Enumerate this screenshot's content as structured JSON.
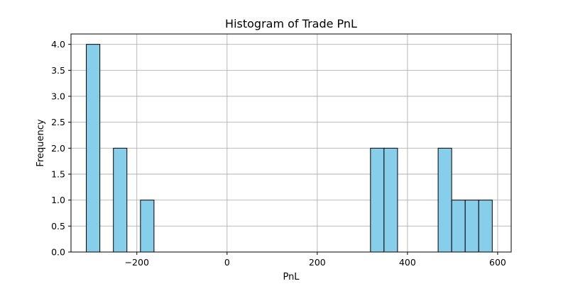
{
  "chart_data": {
    "type": "bar",
    "title": "Histogram of Trade PnL",
    "xlabel": "PnL",
    "ylabel": "Frequency",
    "xlim": [
      -346,
      630
    ],
    "ylim": [
      0,
      4.2
    ],
    "xticks": [
      -200,
      0,
      200,
      400,
      600
    ],
    "xtick_labels": [
      "−200",
      "0",
      "200",
      "400",
      "600"
    ],
    "yticks": [
      0.0,
      0.5,
      1.0,
      1.5,
      2.0,
      2.5,
      3.0,
      3.5,
      4.0
    ],
    "ytick_labels": [
      "0.0",
      "0.5",
      "1.0",
      "1.5",
      "2.0",
      "2.5",
      "3.0",
      "3.5",
      "4.0"
    ],
    "grid": true,
    "bin_width": 30,
    "bins": [
      {
        "start": -312,
        "end": -282,
        "count": 4
      },
      {
        "start": -252,
        "end": -222,
        "count": 2
      },
      {
        "start": -192,
        "end": -162,
        "count": 1
      },
      {
        "start": 318,
        "end": 348,
        "count": 2
      },
      {
        "start": 348,
        "end": 378,
        "count": 2
      },
      {
        "start": 468,
        "end": 498,
        "count": 2
      },
      {
        "start": 498,
        "end": 528,
        "count": 1
      },
      {
        "start": 528,
        "end": 558,
        "count": 1
      },
      {
        "start": 558,
        "end": 588,
        "count": 1
      }
    ],
    "colors": {
      "bar_fill": "#87ceeb",
      "bar_edge": "#000000",
      "grid": "#b0b0b0",
      "axes": "#000000"
    }
  }
}
